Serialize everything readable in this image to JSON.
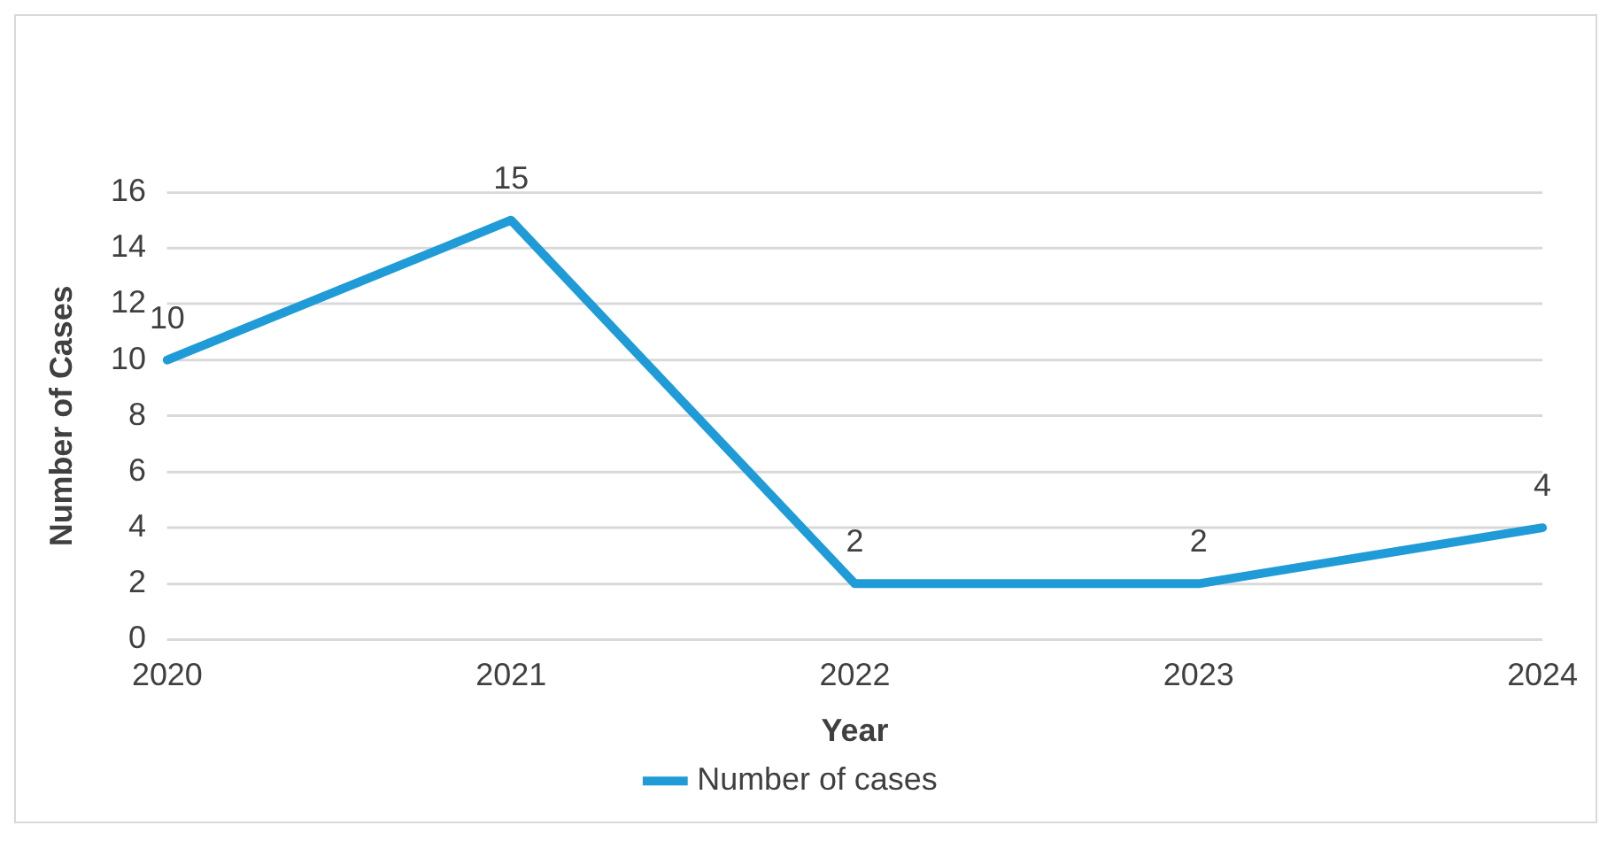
{
  "chart_data": {
    "type": "line",
    "xlabel": "Year",
    "ylabel": "Number of Cases",
    "categories": [
      "2020",
      "2021",
      "2022",
      "2023",
      "2024"
    ],
    "series": [
      {
        "name": "Number of cases",
        "color": "#1f9bd7",
        "values": [
          10,
          15,
          2,
          2,
          4
        ]
      }
    ],
    "ylim": [
      0,
      16
    ],
    "yticks": [
      0,
      2,
      4,
      6,
      8,
      10,
      12,
      14,
      16
    ],
    "grid": "y",
    "legend": "bottom",
    "data_labels": true,
    "marker": "none",
    "line_style": "solid"
  }
}
